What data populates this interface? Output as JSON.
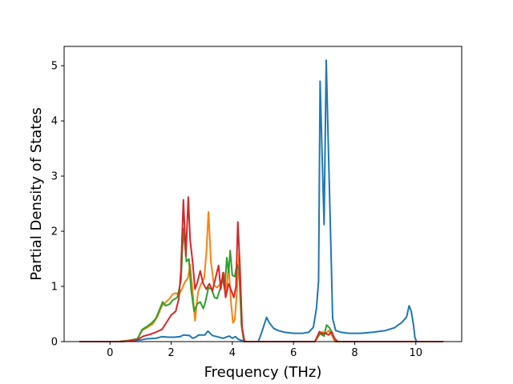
{
  "chart_data": {
    "type": "line",
    "title": "",
    "xlabel": "Frequency (THz)",
    "ylabel": "Partial Density of States",
    "xlim": [
      -1.5,
      11.5
    ],
    "ylim": [
      0,
      5.35
    ],
    "xticks": [
      0,
      2,
      4,
      6,
      8,
      10
    ],
    "yticks": [
      0,
      1,
      2,
      3,
      4,
      5
    ],
    "xtick_labels": [
      "0",
      "2",
      "4",
      "6",
      "8",
      "10"
    ],
    "ytick_labels": [
      "0",
      "1",
      "2",
      "3",
      "4",
      "5"
    ],
    "grid": false,
    "legend": "none",
    "series": [
      {
        "color": "#1f77b4",
        "points": [
          [
            -1.0,
            0
          ],
          [
            0.4,
            0
          ],
          [
            0.8,
            0.02
          ],
          [
            1.0,
            0.03
          ],
          [
            1.2,
            0.05
          ],
          [
            1.5,
            0.06
          ],
          [
            1.7,
            0.09
          ],
          [
            1.9,
            0.08
          ],
          [
            2.1,
            0.08
          ],
          [
            2.3,
            0.09
          ],
          [
            2.4,
            0.12
          ],
          [
            2.6,
            0.11
          ],
          [
            2.7,
            0.06
          ],
          [
            2.8,
            0.08
          ],
          [
            2.9,
            0.12
          ],
          [
            3.1,
            0.12
          ],
          [
            3.2,
            0.19
          ],
          [
            3.35,
            0.11
          ],
          [
            3.5,
            0.09
          ],
          [
            3.7,
            0.06
          ],
          [
            3.9,
            0.1
          ],
          [
            4.0,
            0.06
          ],
          [
            4.1,
            0.09
          ],
          [
            4.2,
            0.04
          ],
          [
            4.3,
            0.02
          ],
          [
            4.45,
            0
          ],
          [
            4.85,
            0
          ],
          [
            4.95,
            0.15
          ],
          [
            5.05,
            0.32
          ],
          [
            5.12,
            0.44
          ],
          [
            5.2,
            0.35
          ],
          [
            5.35,
            0.24
          ],
          [
            5.5,
            0.2
          ],
          [
            5.7,
            0.17
          ],
          [
            6.0,
            0.15
          ],
          [
            6.3,
            0.15
          ],
          [
            6.5,
            0.17
          ],
          [
            6.65,
            0.26
          ],
          [
            6.75,
            0.6
          ],
          [
            6.82,
            1.1
          ],
          [
            6.87,
            4.72
          ],
          [
            6.93,
            3.5
          ],
          [
            7.0,
            2.12
          ],
          [
            7.07,
            5.1
          ],
          [
            7.15,
            3.3
          ],
          [
            7.22,
            1.78
          ],
          [
            7.28,
            0.42
          ],
          [
            7.38,
            0.2
          ],
          [
            7.55,
            0.17
          ],
          [
            7.8,
            0.15
          ],
          [
            8.2,
            0.15
          ],
          [
            8.6,
            0.17
          ],
          [
            9.0,
            0.2
          ],
          [
            9.3,
            0.25
          ],
          [
            9.55,
            0.35
          ],
          [
            9.7,
            0.45
          ],
          [
            9.78,
            0.65
          ],
          [
            9.85,
            0.55
          ],
          [
            9.92,
            0.32
          ],
          [
            9.97,
            0.08
          ],
          [
            10.02,
            0
          ],
          [
            10.9,
            0
          ]
        ]
      },
      {
        "color": "#ff7f0e",
        "points": [
          [
            -1.0,
            0
          ],
          [
            0.3,
            0
          ],
          [
            0.6,
            0.02
          ],
          [
            0.9,
            0.05
          ],
          [
            1.05,
            0.2
          ],
          [
            1.2,
            0.25
          ],
          [
            1.4,
            0.32
          ],
          [
            1.55,
            0.45
          ],
          [
            1.7,
            0.65
          ],
          [
            1.8,
            0.7
          ],
          [
            1.95,
            0.78
          ],
          [
            2.05,
            0.86
          ],
          [
            2.15,
            0.88
          ],
          [
            2.25,
            0.85
          ],
          [
            2.35,
            0.95
          ],
          [
            2.45,
            1.08
          ],
          [
            2.55,
            1.15
          ],
          [
            2.62,
            1.4
          ],
          [
            2.7,
            0.92
          ],
          [
            2.78,
            0.38
          ],
          [
            2.88,
            0.9
          ],
          [
            2.98,
            1.05
          ],
          [
            3.08,
            1.15
          ],
          [
            3.15,
            1.6
          ],
          [
            3.22,
            2.35
          ],
          [
            3.3,
            1.45
          ],
          [
            3.4,
            1.02
          ],
          [
            3.5,
            0.98
          ],
          [
            3.62,
            1.05
          ],
          [
            3.72,
            1.25
          ],
          [
            3.8,
            0.9
          ],
          [
            3.88,
            1.38
          ],
          [
            3.95,
            0.75
          ],
          [
            4.02,
            0.34
          ],
          [
            4.08,
            0.4
          ],
          [
            4.15,
            0.9
          ],
          [
            4.22,
            1.6
          ],
          [
            4.3,
            0.3
          ],
          [
            4.38,
            0
          ],
          [
            6.7,
            0
          ],
          [
            6.85,
            0.12
          ],
          [
            6.95,
            0.18
          ],
          [
            7.05,
            0.14
          ],
          [
            7.15,
            0.2
          ],
          [
            7.25,
            0.12
          ],
          [
            7.35,
            0
          ],
          [
            10.9,
            0
          ]
        ]
      },
      {
        "color": "#2ca02c",
        "points": [
          [
            -1.0,
            0
          ],
          [
            0.3,
            0
          ],
          [
            0.6,
            0.02
          ],
          [
            0.9,
            0.05
          ],
          [
            1.05,
            0.22
          ],
          [
            1.2,
            0.27
          ],
          [
            1.35,
            0.33
          ],
          [
            1.5,
            0.42
          ],
          [
            1.65,
            0.62
          ],
          [
            1.72,
            0.72
          ],
          [
            1.82,
            0.65
          ],
          [
            1.95,
            0.68
          ],
          [
            2.05,
            0.75
          ],
          [
            2.2,
            0.8
          ],
          [
            2.32,
            1.1
          ],
          [
            2.4,
            2.05
          ],
          [
            2.5,
            1.45
          ],
          [
            2.58,
            1.5
          ],
          [
            2.65,
            0.95
          ],
          [
            2.75,
            0.55
          ],
          [
            2.85,
            0.68
          ],
          [
            2.95,
            0.72
          ],
          [
            3.05,
            0.6
          ],
          [
            3.12,
            0.72
          ],
          [
            3.22,
            0.98
          ],
          [
            3.32,
            0.95
          ],
          [
            3.42,
            0.8
          ],
          [
            3.5,
            0.78
          ],
          [
            3.6,
            0.95
          ],
          [
            3.68,
            1.15
          ],
          [
            3.75,
            0.95
          ],
          [
            3.82,
            1.52
          ],
          [
            3.88,
            1.25
          ],
          [
            3.93,
            1.65
          ],
          [
            4.0,
            1.2
          ],
          [
            4.08,
            1.18
          ],
          [
            4.15,
            1.4
          ],
          [
            4.22,
            1.3
          ],
          [
            4.3,
            0.3
          ],
          [
            4.38,
            0
          ],
          [
            6.7,
            0
          ],
          [
            6.85,
            0.15
          ],
          [
            7.0,
            0.1
          ],
          [
            7.08,
            0.3
          ],
          [
            7.18,
            0.25
          ],
          [
            7.3,
            0.1
          ],
          [
            7.4,
            0
          ],
          [
            10.9,
            0
          ]
        ]
      },
      {
        "color": "#d62728",
        "points": [
          [
            -1.0,
            0
          ],
          [
            0.3,
            0
          ],
          [
            0.6,
            0.01
          ],
          [
            0.9,
            0.04
          ],
          [
            1.1,
            0.1
          ],
          [
            1.3,
            0.13
          ],
          [
            1.5,
            0.17
          ],
          [
            1.7,
            0.22
          ],
          [
            1.85,
            0.35
          ],
          [
            2.0,
            0.48
          ],
          [
            2.15,
            0.55
          ],
          [
            2.25,
            0.78
          ],
          [
            2.32,
            1.3
          ],
          [
            2.4,
            2.57
          ],
          [
            2.48,
            1.55
          ],
          [
            2.56,
            2.62
          ],
          [
            2.62,
            1.85
          ],
          [
            2.7,
            1.45
          ],
          [
            2.78,
            0.95
          ],
          [
            2.86,
            1.08
          ],
          [
            2.95,
            1.28
          ],
          [
            3.05,
            1.05
          ],
          [
            3.15,
            0.95
          ],
          [
            3.25,
            1.05
          ],
          [
            3.35,
            0.92
          ],
          [
            3.45,
            1.15
          ],
          [
            3.55,
            1.38
          ],
          [
            3.62,
            0.95
          ],
          [
            3.7,
            1.25
          ],
          [
            3.78,
            0.8
          ],
          [
            3.88,
            1.05
          ],
          [
            3.95,
            0.95
          ],
          [
            4.05,
            0.8
          ],
          [
            4.12,
            1.0
          ],
          [
            4.18,
            2.17
          ],
          [
            4.25,
            1.35
          ],
          [
            4.32,
            0.25
          ],
          [
            4.4,
            0
          ],
          [
            6.7,
            0
          ],
          [
            6.85,
            0.18
          ],
          [
            6.95,
            0.14
          ],
          [
            7.05,
            0.15
          ],
          [
            7.15,
            0.12
          ],
          [
            7.25,
            0.18
          ],
          [
            7.35,
            0.05
          ],
          [
            7.45,
            0
          ],
          [
            10.9,
            0
          ]
        ]
      }
    ]
  }
}
